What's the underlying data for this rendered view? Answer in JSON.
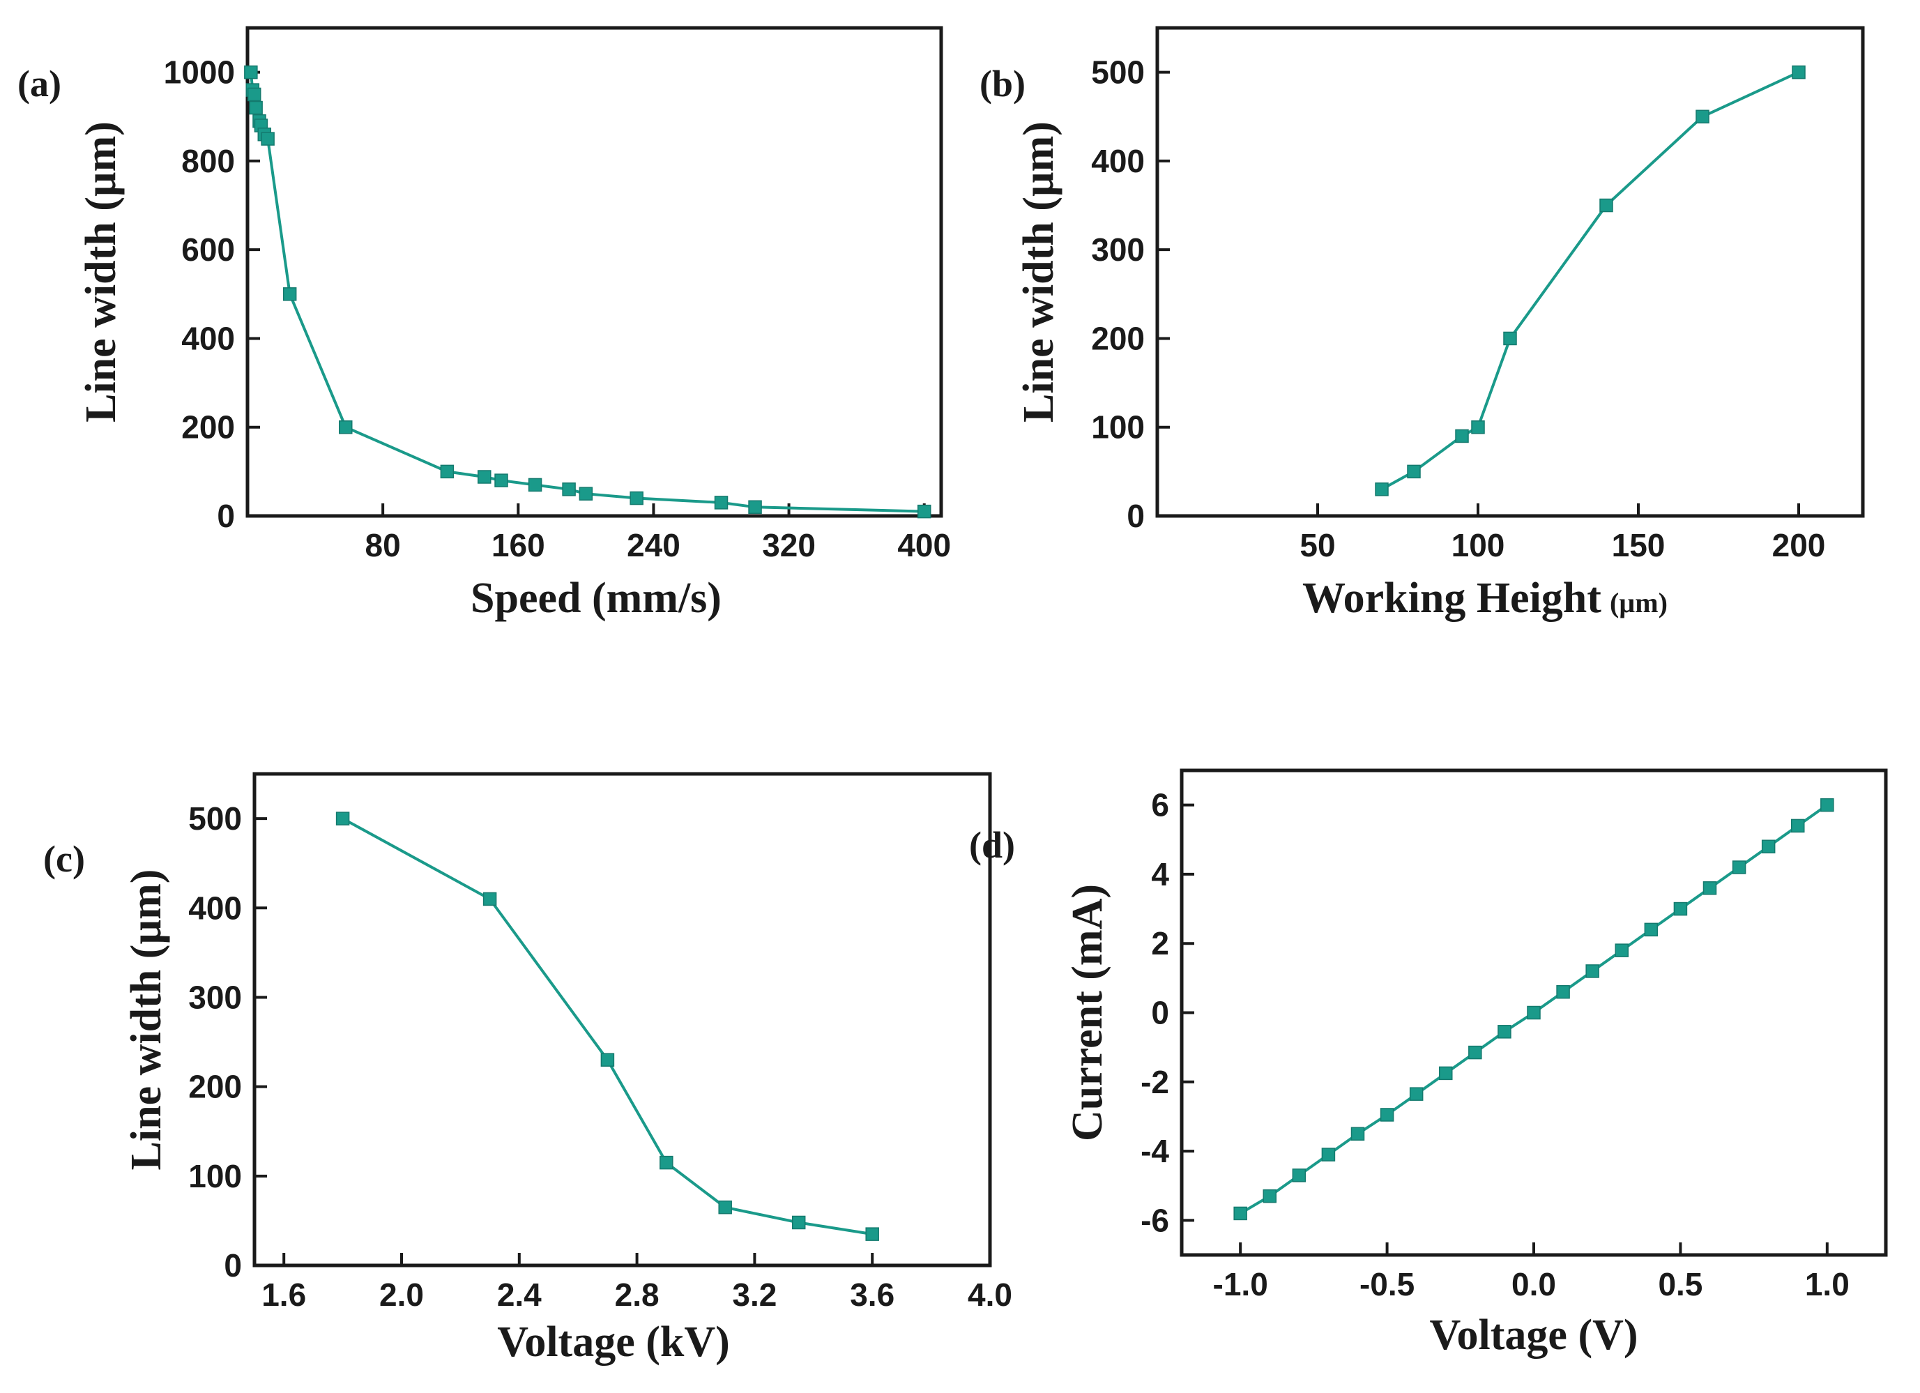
{
  "chart_data": [
    {
      "type": "line",
      "panel_label": "(a)",
      "xlabel": "Speed (mm/s)",
      "ylabel": "Line width (µm)",
      "xlim": [
        0,
        410
      ],
      "ylim": [
        0,
        1100
      ],
      "xticks": [
        80,
        160,
        240,
        320,
        400
      ],
      "xtick_labels": [
        "80",
        "160",
        "240",
        "320",
        "400"
      ],
      "yticks": [
        0,
        200,
        400,
        600,
        800,
        1000
      ],
      "ytick_labels": [
        "0",
        "200",
        "400",
        "600",
        "800",
        "1000"
      ],
      "color": "#1a9a8a",
      "x": [
        2,
        3,
        4,
        5,
        7,
        8,
        10,
        12,
        25,
        58,
        118,
        140,
        150,
        170,
        190,
        200,
        230,
        280,
        300,
        400
      ],
      "y": [
        1000,
        960,
        950,
        920,
        890,
        880,
        860,
        850,
        500,
        200,
        100,
        88,
        80,
        70,
        60,
        50,
        40,
        30,
        20,
        10
      ]
    },
    {
      "type": "line",
      "panel_label": "(b)",
      "xlabel": "Working Height",
      "xlabel_unit": "(µm)",
      "ylabel": "Line width (µm)",
      "xlim": [
        0,
        220
      ],
      "ylim": [
        0,
        550
      ],
      "xticks": [
        50,
        100,
        150,
        200
      ],
      "xtick_labels": [
        "50",
        "100",
        "150",
        "200"
      ],
      "yticks": [
        0,
        100,
        200,
        300,
        400,
        500
      ],
      "ytick_labels": [
        "0",
        "100",
        "200",
        "300",
        "400",
        "500"
      ],
      "color": "#1a9a8a",
      "x": [
        70,
        80,
        95,
        100,
        110,
        140,
        170,
        200
      ],
      "y": [
        30,
        50,
        90,
        100,
        200,
        350,
        450,
        500
      ]
    },
    {
      "type": "line",
      "panel_label": "(c)",
      "xlabel": "Voltage (kV)",
      "ylabel": "Line width (µm)",
      "xlim": [
        1.5,
        4.0
      ],
      "ylim": [
        0,
        550
      ],
      "xticks": [
        1.6,
        2.0,
        2.4,
        2.8,
        3.2,
        3.6,
        4.0
      ],
      "xtick_labels": [
        "1.6",
        "2.0",
        "2.4",
        "2.8",
        "3.2",
        "3.6",
        "4.0"
      ],
      "yticks": [
        0,
        100,
        200,
        300,
        400,
        500
      ],
      "ytick_labels": [
        "0",
        "100",
        "200",
        "300",
        "400",
        "500"
      ],
      "color": "#1a9a8a",
      "x": [
        1.8,
        2.3,
        2.7,
        2.9,
        3.1,
        3.35,
        3.6
      ],
      "y": [
        500,
        410,
        230,
        115,
        65,
        48,
        35
      ]
    },
    {
      "type": "line",
      "panel_label": "(d)",
      "xlabel": "Voltage (V)",
      "ylabel": "Current (mA)",
      "xlim": [
        -1.2,
        1.2
      ],
      "ylim": [
        -7,
        7
      ],
      "xticks": [
        -1.0,
        -0.5,
        0.0,
        0.5,
        1.0
      ],
      "xtick_labels": [
        "-1.0",
        "-0.5",
        "0.0",
        "0.5",
        "1.0"
      ],
      "yticks": [
        -6,
        -4,
        -2,
        0,
        2,
        4,
        6
      ],
      "ytick_labels": [
        "-6",
        "-4",
        "-2",
        "0",
        "2",
        "4",
        "6"
      ],
      "color": "#1a9a8a",
      "x": [
        -1.0,
        -0.9,
        -0.8,
        -0.7,
        -0.6,
        -0.5,
        -0.4,
        -0.3,
        -0.2,
        -0.1,
        0.0,
        0.1,
        0.2,
        0.3,
        0.4,
        0.5,
        0.6,
        0.7,
        0.8,
        0.9,
        1.0
      ],
      "y": [
        -5.8,
        -5.3,
        -4.7,
        -4.1,
        -3.5,
        -2.95,
        -2.35,
        -1.75,
        -1.15,
        -0.55,
        0.0,
        0.6,
        1.2,
        1.8,
        2.4,
        3.0,
        3.6,
        4.2,
        4.8,
        5.4,
        6.0
      ]
    }
  ]
}
